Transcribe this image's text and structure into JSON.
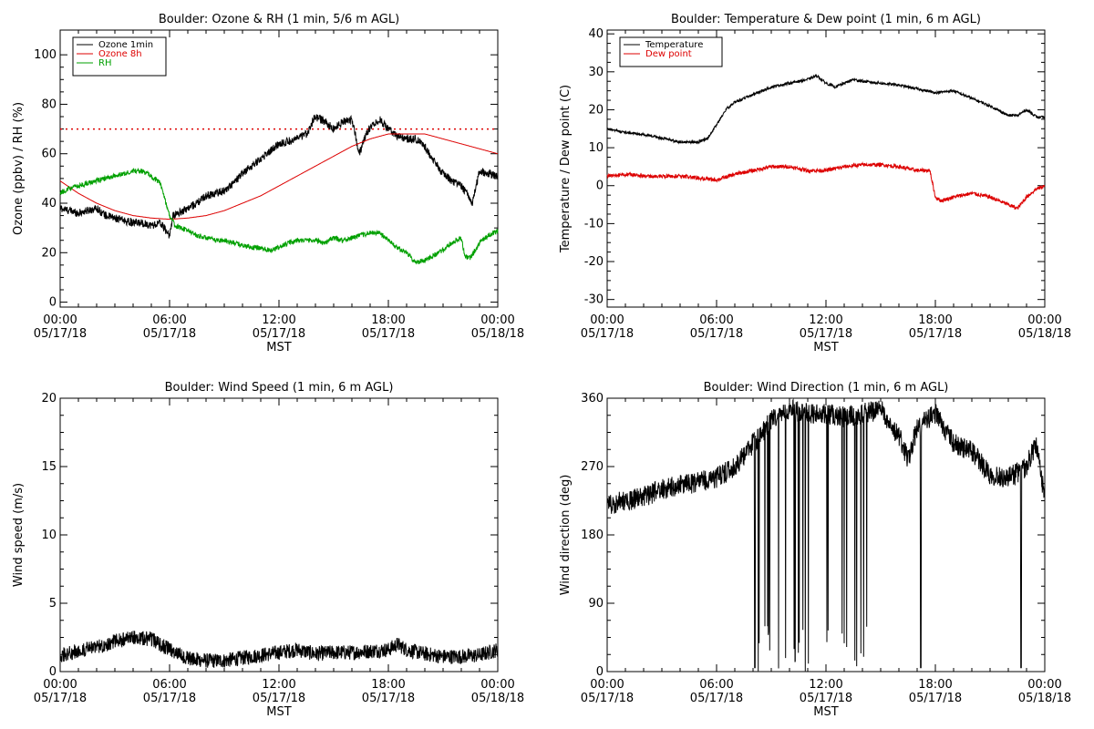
{
  "chart_data": [
    {
      "id": "ozone",
      "type": "line",
      "title": "Boulder: Ozone & RH (1 min, 5/6 m AGL)",
      "ylabel": "Ozone (ppbv) / RH (%)",
      "xlabel": "MST",
      "ylim": [
        -2,
        110
      ],
      "yticks": [
        0,
        20,
        40,
        60,
        80,
        100
      ],
      "x_ticks": [
        {
          "hour": 0,
          "time": "00:00",
          "date": "05/17/18"
        },
        {
          "hour": 6,
          "time": "06:00",
          "date": "05/17/18"
        },
        {
          "hour": 12,
          "time": "12:00",
          "date": "05/17/18"
        },
        {
          "hour": 18,
          "time": "18:00",
          "date": "05/17/18"
        },
        {
          "hour": 24,
          "time": "00:00",
          "date": "05/18/18"
        }
      ],
      "legend": "top-left",
      "reference_line": {
        "y": 70,
        "color": "#dd0000",
        "style": "dotted"
      },
      "series": [
        {
          "name": "Ozone 1min",
          "color": "#000000",
          "noise": 1.6,
          "x": [
            0,
            0.5,
            1,
            1.5,
            2,
            2.5,
            3,
            3.5,
            4,
            4.5,
            5,
            5.5,
            6,
            6.2,
            6.5,
            7,
            7.5,
            8,
            8.5,
            9,
            9.5,
            10,
            10.5,
            11,
            11.5,
            12,
            12.5,
            13,
            13.5,
            14,
            14.5,
            15,
            15.5,
            16,
            16.4,
            16.8,
            17,
            17.5,
            18,
            18.5,
            19,
            19.5,
            20,
            20.5,
            21,
            21.5,
            22,
            22.3,
            22.6,
            23,
            23.5,
            24
          ],
          "y": [
            38,
            37,
            36,
            37,
            38,
            35,
            34,
            33,
            32,
            32,
            31,
            32,
            27,
            35,
            36,
            38,
            40,
            43,
            44,
            45,
            48,
            52,
            55,
            58,
            61,
            64,
            65,
            66,
            68,
            75,
            73,
            70,
            73,
            74,
            60,
            68,
            71,
            74,
            70,
            67,
            66,
            66,
            63,
            57,
            52,
            49,
            47,
            44,
            40,
            53,
            52,
            51
          ]
        },
        {
          "name": "Ozone 8h",
          "color": "#dd0000",
          "noise": 0,
          "x": [
            0,
            1,
            2,
            3,
            4,
            5,
            6,
            7,
            8,
            9,
            10,
            11,
            12,
            13,
            14,
            15,
            16,
            17,
            18,
            19,
            20,
            21,
            22,
            23,
            24
          ],
          "y": [
            49,
            44,
            40,
            37,
            35,
            34,
            33.5,
            34,
            35,
            37,
            40,
            43,
            47,
            51,
            55,
            59,
            63,
            66,
            68,
            68,
            68,
            66,
            64,
            62,
            60
          ]
        },
        {
          "name": "RH",
          "color": "#00a000",
          "noise": 1.0,
          "x": [
            0,
            0.5,
            1,
            1.5,
            2,
            2.5,
            3,
            3.5,
            4,
            4.5,
            5,
            5.5,
            6,
            6.3,
            6.6,
            7,
            7.5,
            8,
            8.5,
            9,
            9.5,
            10,
            10.5,
            11,
            11.5,
            12,
            12.5,
            13,
            13.5,
            14,
            14.5,
            15,
            15.5,
            16,
            16.5,
            17,
            17.5,
            18,
            18.5,
            19,
            19.5,
            20,
            20.5,
            21,
            21.5,
            22,
            22.2,
            22.5,
            23,
            23.5,
            24
          ],
          "y": [
            44,
            46,
            47,
            48,
            49,
            50,
            51,
            52,
            53,
            53,
            51,
            48,
            35,
            31,
            30,
            29,
            27,
            26,
            25,
            25,
            24,
            23,
            22,
            22,
            21,
            22,
            24,
            25,
            25,
            25,
            24,
            26,
            25,
            26,
            27,
            28,
            28,
            25,
            22,
            20,
            16,
            17,
            19,
            21,
            24,
            26,
            18,
            18,
            24,
            27,
            29
          ]
        }
      ]
    },
    {
      "id": "temp",
      "type": "line",
      "title": "Boulder: Temperature & Dew point (1 min, 6 m AGL)",
      "ylabel": "Temperature / Dew point (C)",
      "xlabel": "MST",
      "ylim": [
        -32,
        41
      ],
      "yticks": [
        -30,
        -20,
        -10,
        0,
        10,
        20,
        30,
        40
      ],
      "x_ticks": [
        {
          "hour": 0,
          "time": "00:00",
          "date": "05/17/18"
        },
        {
          "hour": 6,
          "time": "06:00",
          "date": "05/17/18"
        },
        {
          "hour": 12,
          "time": "12:00",
          "date": "05/17/18"
        },
        {
          "hour": 18,
          "time": "18:00",
          "date": "05/17/18"
        },
        {
          "hour": 24,
          "time": "00:00",
          "date": "05/18/18"
        }
      ],
      "legend": "top-left",
      "series": [
        {
          "name": "Temperature",
          "color": "#000000",
          "noise": 0.35,
          "x": [
            0,
            1,
            2,
            3,
            4,
            5,
            5.5,
            6,
            6.5,
            7,
            8,
            9,
            10,
            11,
            11.5,
            12,
            12.5,
            13,
            13.5,
            14,
            15,
            16,
            17,
            18,
            19,
            19.5,
            20,
            21,
            22,
            22.5,
            23,
            23.3,
            23.6,
            24
          ],
          "y": [
            15,
            14,
            13.5,
            12.5,
            11.5,
            11.5,
            12.5,
            16,
            20,
            22,
            24,
            26,
            27,
            28,
            29,
            27,
            26,
            27,
            28,
            27.5,
            27,
            26.5,
            25.5,
            24.5,
            25,
            24,
            23,
            21,
            18.5,
            18.5,
            20,
            19,
            18,
            18
          ]
        },
        {
          "name": "Dew point",
          "color": "#dd0000",
          "noise": 0.5,
          "x": [
            0,
            1,
            2,
            3,
            4,
            5,
            6,
            7,
            8,
            9,
            10,
            11,
            12,
            13,
            14,
            15,
            16,
            17,
            17.7,
            18,
            18.3,
            19,
            20,
            21,
            21.5,
            22,
            22.5,
            23,
            23.5,
            24
          ],
          "y": [
            2.5,
            3,
            2.5,
            2.5,
            2.5,
            2,
            1.5,
            3,
            4,
            5,
            5,
            4,
            4,
            5,
            5.5,
            5.5,
            5,
            4,
            4,
            -3,
            -4,
            -3,
            -2,
            -3,
            -4,
            -5,
            -6,
            -3,
            -1,
            0
          ]
        }
      ]
    },
    {
      "id": "wind_speed",
      "type": "line",
      "title": "Boulder: Wind Speed (1 min, 6 m AGL)",
      "ylabel": "Wind speed (m/s)",
      "xlabel": "MST",
      "ylim": [
        0,
        20
      ],
      "yticks": [
        0,
        5,
        10,
        15,
        20
      ],
      "x_ticks": [
        {
          "hour": 0,
          "time": "00:00",
          "date": "05/17/18"
        },
        {
          "hour": 6,
          "time": "06:00",
          "date": "05/17/18"
        },
        {
          "hour": 12,
          "time": "12:00",
          "date": "05/17/18"
        },
        {
          "hour": 18,
          "time": "18:00",
          "date": "05/17/18"
        },
        {
          "hour": 24,
          "time": "00:00",
          "date": "05/18/18"
        }
      ],
      "series": [
        {
          "name": "",
          "color": "#000000",
          "noise": 0.55,
          "x": [
            0,
            1,
            2,
            3,
            4,
            5,
            6,
            7,
            8,
            9,
            10,
            11,
            12,
            13,
            14,
            15,
            16,
            17,
            18,
            18.5,
            19,
            20,
            21,
            22,
            23,
            24
          ],
          "y": [
            1.2,
            1.5,
            1.8,
            2.2,
            2.5,
            2.4,
            1.6,
            1.0,
            0.8,
            0.8,
            1.0,
            1.2,
            1.4,
            1.6,
            1.3,
            1.4,
            1.4,
            1.5,
            1.6,
            2.0,
            1.6,
            1.3,
            1.1,
            1.1,
            1.2,
            1.6
          ]
        }
      ]
    },
    {
      "id": "wind_dir",
      "type": "line",
      "title": "Boulder: Wind Direction (1 min, 6 m AGL)",
      "ylabel": "Wind direction (deg)",
      "xlabel": "MST",
      "ylim": [
        0,
        360
      ],
      "yticks": [
        0,
        90,
        180,
        270,
        360
      ],
      "x_ticks": [
        {
          "hour": 0,
          "time": "00:00",
          "date": "05/17/18"
        },
        {
          "hour": 6,
          "time": "06:00",
          "date": "05/17/18"
        },
        {
          "hour": 12,
          "time": "12:00",
          "date": "05/17/18"
        },
        {
          "hour": 18,
          "time": "18:00",
          "date": "05/17/18"
        },
        {
          "hour": 24,
          "time": "00:00",
          "date": "05/18/18"
        }
      ],
      "series": [
        {
          "name": "",
          "color": "#000000",
          "noise": 14,
          "x": [
            0,
            1,
            2,
            3,
            4,
            5,
            6,
            7,
            8,
            9,
            10,
            11,
            12,
            13,
            14,
            15,
            16,
            16.5,
            17,
            18,
            19,
            20,
            21,
            22,
            23,
            23.5,
            24
          ],
          "y": [
            220,
            225,
            230,
            240,
            245,
            250,
            255,
            270,
            300,
            330,
            345,
            340,
            340,
            335,
            340,
            345,
            310,
            280,
            320,
            340,
            300,
            290,
            260,
            255,
            270,
            300,
            230
          ],
          "wrap_segments": [
            [
              8.0,
              14.5
            ]
          ],
          "spikes": [
            8.1,
            17.2,
            22.7
          ]
        }
      ]
    }
  ]
}
